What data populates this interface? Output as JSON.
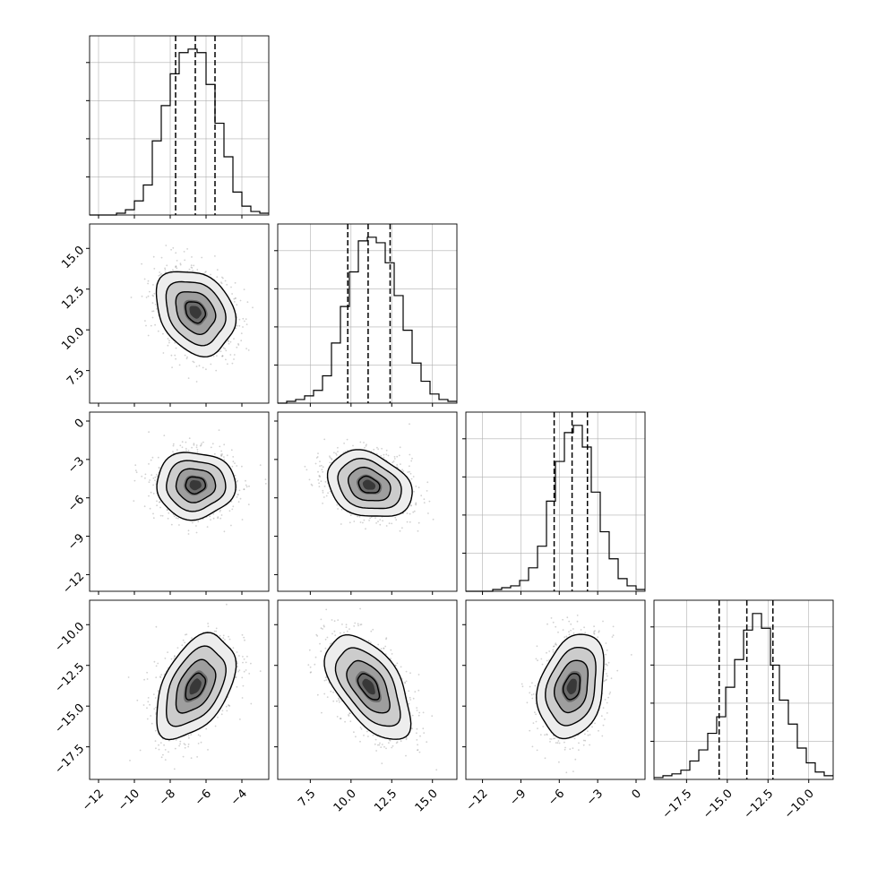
{
  "figure": {
    "type": "corner-plot"
  },
  "colors": {
    "hist_line": "#000000",
    "quantile_line": "#000000",
    "grid": "#b0b0b0",
    "contour": "#000000",
    "density_dark": "#000000",
    "scatter_point": "#9a9a9a",
    "frame": "#000000",
    "background": "#ffffff"
  },
  "chart_data": {
    "type": "corner",
    "dimensions": [
      {
        "label": "",
        "range": [
          -12.5,
          -2.5
        ],
        "ticks": [
          -12,
          -10,
          -8,
          -6,
          -4
        ],
        "tick_labels": [
          "−12",
          "−10",
          "−8",
          "−6",
          "−4"
        ],
        "quantiles": [
          -7.7,
          -6.6,
          -5.5
        ],
        "hist_bins": [
          -12.5,
          -12.0,
          -11.5,
          -11.0,
          -10.5,
          -10.0,
          -9.5,
          -9.0,
          -8.5,
          -8.0,
          -7.5,
          -7.0,
          -6.5,
          -6.0,
          -5.5,
          -5.0,
          -4.5,
          -4.0,
          -3.5,
          -3.0,
          -2.5
        ],
        "hist_counts": [
          0,
          0,
          0,
          1,
          3,
          8,
          17,
          42,
          62,
          80,
          92,
          94,
          92,
          74,
          52,
          33,
          13,
          5,
          2,
          1
        ]
      },
      {
        "label": "",
        "range": [
          5.5,
          16.5
        ],
        "ticks": [
          7.5,
          10.0,
          12.5,
          15.0
        ],
        "tick_labels": [
          "7.5",
          "10.0",
          "12.5",
          "15.0"
        ],
        "quantiles": [
          9.8,
          11.05,
          12.4
        ],
        "hist_bins": [
          5.5,
          6.05,
          6.6,
          7.15,
          7.7,
          8.25,
          8.8,
          9.35,
          9.9,
          10.45,
          11.0,
          11.55,
          12.1,
          12.65,
          13.2,
          13.75,
          14.3,
          14.85,
          15.4,
          15.95,
          16.5
        ],
        "hist_counts": [
          0,
          1,
          2,
          4,
          7,
          15,
          33,
          53,
          72,
          89,
          91,
          88,
          77,
          59,
          40,
          22,
          12,
          5,
          2,
          1
        ]
      },
      {
        "label": "",
        "range": [
          -13.3,
          0.7
        ],
        "ticks": [
          -12,
          -9,
          -6,
          -3,
          0
        ],
        "tick_labels": [
          "−12",
          "−9",
          "−6",
          "−3",
          "0"
        ],
        "quantiles": [
          -6.4,
          -5.0,
          -3.8
        ],
        "hist_bins": [
          -13.3,
          -12.6,
          -11.9,
          -11.2,
          -10.5,
          -9.8,
          -9.1,
          -8.4,
          -7.7,
          -7.0,
          -6.3,
          -5.6,
          -4.9,
          -4.2,
          -3.5,
          -2.8,
          -2.1,
          -1.4,
          -0.7,
          0.0,
          0.7
        ],
        "hist_counts": [
          0,
          0,
          0,
          1,
          2,
          3,
          6,
          13,
          25,
          50,
          72,
          88,
          92,
          80,
          55,
          33,
          18,
          7,
          3,
          1
        ]
      },
      {
        "label": "",
        "range": [
          -19.5,
          -8.5
        ],
        "ticks": [
          -17.5,
          -15.0,
          -12.5,
          -10.0
        ],
        "tick_labels": [
          "−17.5",
          "−15.0",
          "−12.5",
          "−10.0"
        ],
        "quantiles": [
          -15.5,
          -13.8,
          -12.2
        ],
        "hist_bins": [
          -19.5,
          -18.95,
          -18.4,
          -17.85,
          -17.3,
          -16.75,
          -16.2,
          -15.65,
          -15.1,
          -14.55,
          -14.0,
          -13.45,
          -12.9,
          -12.35,
          -11.8,
          -11.25,
          -10.7,
          -10.15,
          -9.6,
          -9.05,
          -8.5
        ],
        "hist_counts": [
          1,
          2,
          3,
          5,
          10,
          16,
          25,
          34,
          50,
          65,
          81,
          90,
          82,
          62,
          43,
          30,
          17,
          9,
          4,
          2
        ]
      }
    ],
    "pairs": [
      {
        "x_dim": 0,
        "y_dim": 1,
        "mean": [
          -6.6,
          11.1
        ],
        "sd": [
          1.1,
          1.3
        ],
        "corr": -0.25
      },
      {
        "x_dim": 0,
        "y_dim": 2,
        "mean": [
          -6.6,
          -5.0
        ],
        "sd": [
          1.1,
          1.3
        ],
        "corr": 0.0
      },
      {
        "x_dim": 1,
        "y_dim": 2,
        "mean": [
          11.1,
          -5.0
        ],
        "sd": [
          1.3,
          1.3
        ],
        "corr": -0.25
      },
      {
        "x_dim": 0,
        "y_dim": 3,
        "mean": [
          -6.6,
          -13.8
        ],
        "sd": [
          1.1,
          1.6
        ],
        "corr": 0.45
      },
      {
        "x_dim": 1,
        "y_dim": 3,
        "mean": [
          11.1,
          -13.8
        ],
        "sd": [
          1.3,
          1.6
        ],
        "corr": -0.55
      },
      {
        "x_dim": 2,
        "y_dim": 3,
        "mean": [
          -5.0,
          -13.8
        ],
        "sd": [
          1.3,
          1.6
        ],
        "corr": 0.25
      }
    ],
    "contour_levels_sigma": [
      0.5,
      1.0,
      1.5,
      2.0
    ],
    "histogram_ticks": 4,
    "grid": true
  }
}
